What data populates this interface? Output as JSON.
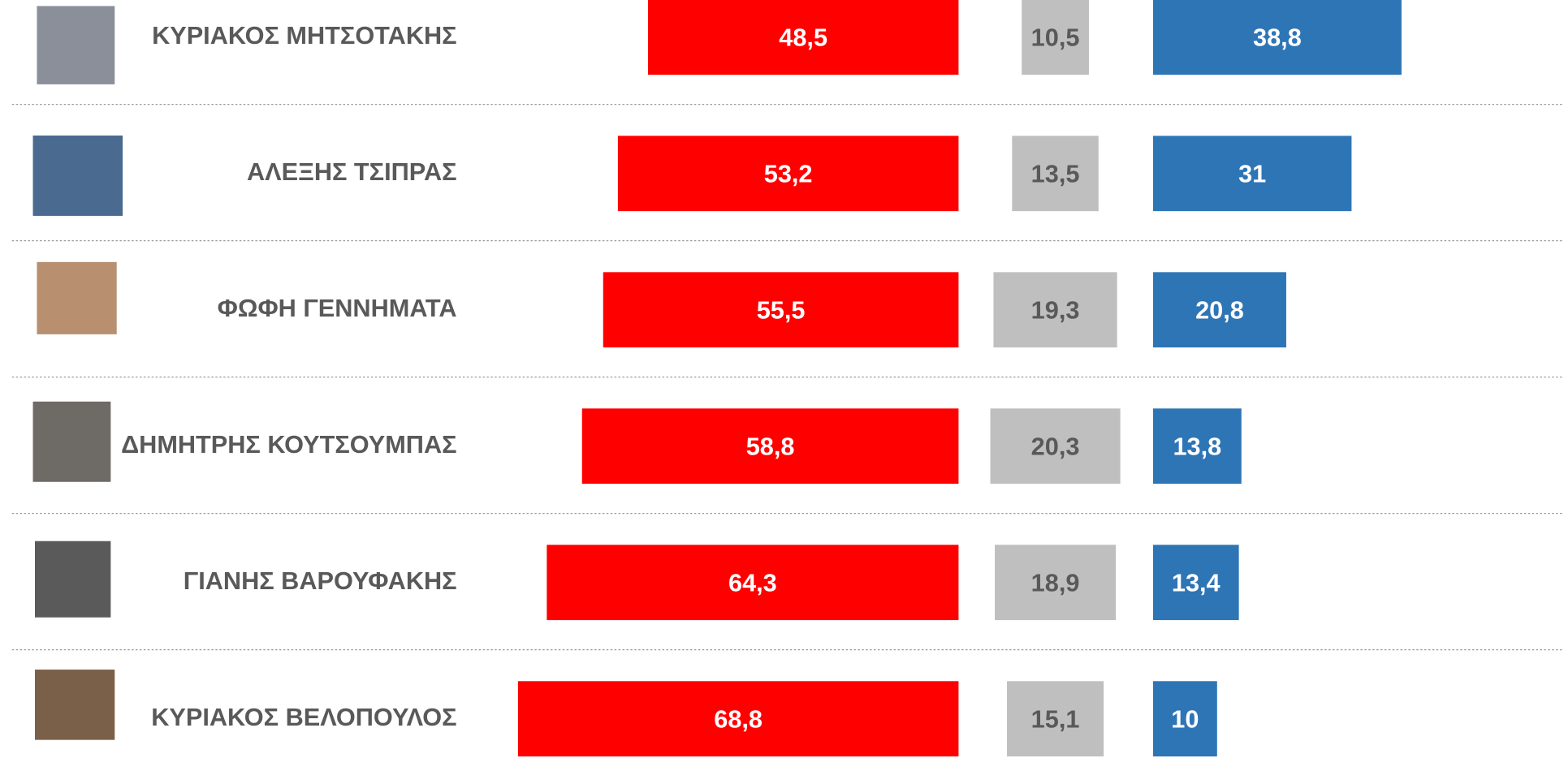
{
  "chart_data": {
    "type": "diverging-bar",
    "categories": [
      "ΚΥΡΙΑΚΟΣ ΜΗΤΣΟΤΑΚΗΣ",
      "ΑΛΕΞΗΣ ΤΣΙΠΡΑΣ",
      "ΦΩΦΗ ΓΕΝΝΗΜΑΤΑ",
      "ΔΗΜΗΤΡΗΣ ΚΟΥΤΣΟΥΜΠΑΣ",
      "ΓΙΑΝΗΣ ΒΑΡΟΥΦΑΚΗΣ",
      "ΚΥΡΙΑΚΟΣ ΒΕΛΟΠΟΥΛΟΣ"
    ],
    "series": [
      {
        "color": "#ff0000",
        "values": [
          48.5,
          53.2,
          55.5,
          58.8,
          64.3,
          68.8
        ],
        "value_labels": [
          "48,5",
          "53,2",
          "55,5",
          "58,8",
          "64,3",
          "68,8"
        ]
      },
      {
        "color": "#bfbfbf",
        "values": [
          10.5,
          13.5,
          19.3,
          20.3,
          18.9,
          15.1
        ],
        "value_labels": [
          "10,5",
          "13,5",
          "19,3",
          "20,3",
          "18,9",
          "15,1"
        ]
      },
      {
        "color": "#2e75b6",
        "values": [
          38.8,
          31,
          20.8,
          13.8,
          13.4,
          10
        ],
        "value_labels": [
          "38,8",
          "31",
          "20,8",
          "13,8",
          "13,4",
          "10"
        ]
      }
    ]
  }
}
